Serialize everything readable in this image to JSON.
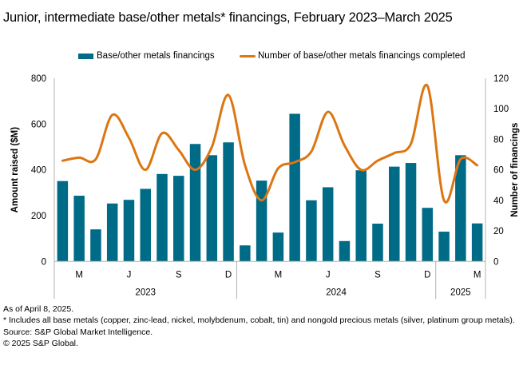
{
  "title": "Junior, intermediate base/other metals* financings, February 2023–March 2025",
  "legend": {
    "bars_label": "Base/other metals financings",
    "line_label": "Number of base/other metals financings completed"
  },
  "colors": {
    "bars": "#006b87",
    "line": "#dc7612",
    "axis": "#b3b3b3"
  },
  "chart_data": {
    "type": "bar",
    "title": "Junior, intermediate base/other metals* financings, February 2023–March 2025",
    "xlabel": "",
    "ylabel": "Amount raised ($M)",
    "y2label": "Number of financings",
    "ylim": [
      0,
      800
    ],
    "y2lim": [
      0,
      120
    ],
    "yticks": [
      "0",
      "200",
      "400",
      "600",
      "800"
    ],
    "y2ticks": [
      "0",
      "20",
      "40",
      "60",
      "80",
      "100",
      "120"
    ],
    "grid": false,
    "legend_position": "top",
    "categories": [
      "Feb 2023",
      "Mar 2023",
      "Apr 2023",
      "May 2023",
      "Jun 2023",
      "Jul 2023",
      "Aug 2023",
      "Sep 2023",
      "Oct 2023",
      "Nov 2023",
      "Dec 2023",
      "Jan 2024",
      "Feb 2024",
      "Mar 2024",
      "Apr 2024",
      "May 2024",
      "Jun 2024",
      "Jul 2024",
      "Aug 2024",
      "Sep 2024",
      "Oct 2024",
      "Nov 2024",
      "Dec 2024",
      "Jan 2025",
      "Feb 2025",
      "Mar 2025"
    ],
    "tick_labels": [
      "",
      "M",
      "",
      "",
      "J",
      "",
      "",
      "S",
      "",
      "",
      "D",
      "",
      "",
      "M",
      "",
      "",
      "J",
      "",
      "",
      "S",
      "",
      "",
      "D",
      "",
      "",
      "M"
    ],
    "year_groups": [
      {
        "label": "2023",
        "count": 11
      },
      {
        "label": "2024",
        "count": 12
      },
      {
        "label": "2025",
        "count": 3
      }
    ],
    "series": [
      {
        "name": "Base/other metals financings",
        "type": "bar",
        "axis": "left",
        "values": [
          351,
          287,
          140,
          253,
          269,
          317,
          382,
          374,
          513,
          464,
          520,
          70,
          353,
          126,
          645,
          267,
          324,
          89,
          398,
          165,
          414,
          430,
          234,
          130,
          464,
          166
        ]
      },
      {
        "name": "Number of base/other metals financings completed",
        "type": "line",
        "axis": "right",
        "smooth": true,
        "values": [
          66,
          68,
          67,
          96,
          81,
          60,
          84,
          73,
          60,
          75,
          109,
          63,
          40,
          61,
          65,
          72,
          98,
          76,
          60,
          66,
          71,
          77,
          115,
          40,
          67,
          63
        ]
      }
    ]
  },
  "footer": {
    "as_of": "As of April 8, 2025.",
    "note": "* Includes all base metals (copper, zinc-lead, nickel, molybdenum, cobalt, tin) and nongold precious metals (silver, platinum group metals).",
    "source": "Source: S&P Global Market Intelligence.",
    "copyright": "© 2025 S&P Global."
  }
}
